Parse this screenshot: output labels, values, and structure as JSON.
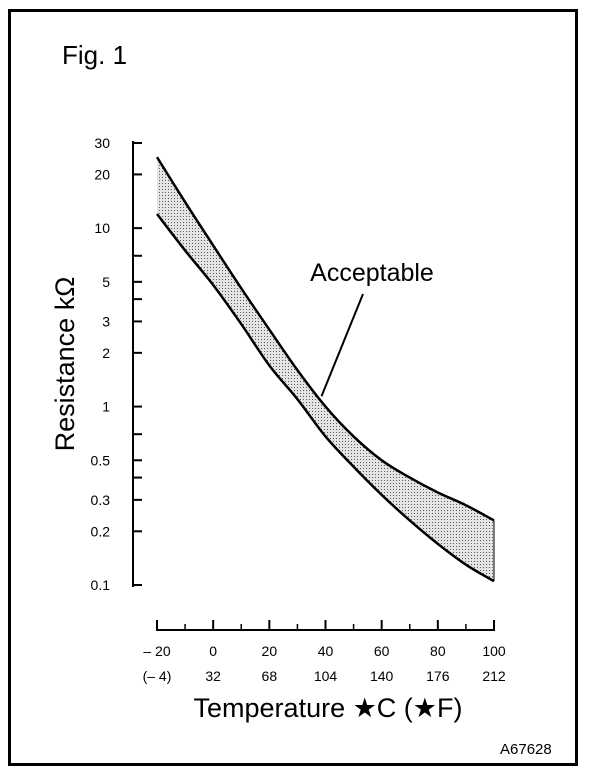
{
  "figure": {
    "label": "Fig. 1",
    "code": "A67628"
  },
  "chart_data": {
    "type": "area",
    "ylabel": "Resistance kΩ",
    "xlabel": "Temperature ★C (★F)",
    "y_scale": "log",
    "ylim": [
      0.1,
      30
    ],
    "xlim": [
      -20,
      100
    ],
    "yticks": [
      {
        "v": 30,
        "label": "30"
      },
      {
        "v": 20,
        "label": "20"
      },
      {
        "v": 10,
        "label": "10"
      },
      {
        "v": 5,
        "label": "5"
      },
      {
        "v": 3,
        "label": "3"
      },
      {
        "v": 2,
        "label": "2"
      },
      {
        "v": 1,
        "label": "1"
      },
      {
        "v": 0.5,
        "label": "0.5"
      },
      {
        "v": 0.3,
        "label": "0.3"
      },
      {
        "v": 0.2,
        "label": "0.2"
      },
      {
        "v": 0.1,
        "label": "0.1"
      }
    ],
    "yminor": [
      7,
      4,
      0.7,
      0.4
    ],
    "xticks": [
      {
        "c": -20,
        "label": "– 20",
        "flabel": "(– 4)"
      },
      {
        "c": 0,
        "label": "0",
        "flabel": "32"
      },
      {
        "c": 20,
        "label": "20",
        "flabel": "68"
      },
      {
        "c": 40,
        "label": "40",
        "flabel": "104"
      },
      {
        "c": 60,
        "label": "60",
        "flabel": "140"
      },
      {
        "c": 80,
        "label": "80",
        "flabel": "176"
      },
      {
        "c": 100,
        "label": "100",
        "flabel": "212"
      }
    ],
    "xminor": [
      -10,
      10,
      30,
      50,
      70,
      90
    ],
    "series": [
      {
        "role": "upper",
        "x": [
          -20,
          -10,
          0,
          10,
          20,
          30,
          40,
          50,
          60,
          70,
          80,
          90,
          100
        ],
        "values": [
          25,
          14,
          8,
          4.6,
          2.7,
          1.6,
          1.0,
          0.68,
          0.5,
          0.4,
          0.33,
          0.28,
          0.23
        ]
      },
      {
        "role": "lower",
        "x": [
          -20,
          -10,
          0,
          10,
          20,
          30,
          40,
          50,
          60,
          70,
          80,
          90,
          100
        ],
        "values": [
          12,
          7.5,
          4.8,
          2.9,
          1.7,
          1.1,
          0.68,
          0.46,
          0.32,
          0.23,
          0.17,
          0.13,
          0.105
        ]
      }
    ],
    "annotations": [
      {
        "text": "Acceptable",
        "points_to": {
          "x": 40,
          "y": 1.3
        }
      }
    ],
    "colors": {
      "band": "#c9c9c9",
      "line": "#000000"
    }
  }
}
